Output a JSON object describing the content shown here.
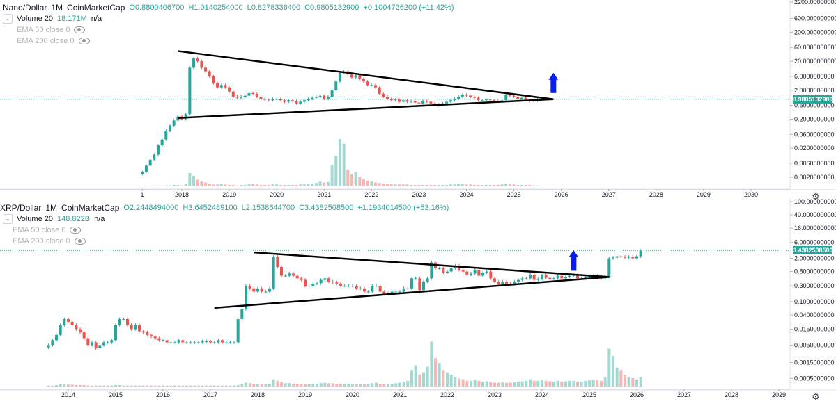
{
  "colors": {
    "up": "#26a69a",
    "down": "#ef5350",
    "vol_up": "#a3d9d3",
    "vol_down": "#f6b7b5",
    "arrow": "#0b1ee8",
    "line": "#000000",
    "grid": "#f0f3fa",
    "price_line": "#26a69a"
  },
  "chart_data": [
    {
      "type": "candlestick",
      "symbol": "Nano/Dollar",
      "interval": "1M",
      "source": "CoinMarketCap",
      "ohlc_labels": {
        "o": "O0.8800406700",
        "h": "H1.0140254000",
        "l": "L0.8278336400",
        "c": "C0.9805132900",
        "chg": "+0.1004726200 (+11.42%)"
      },
      "volume_label": "Volume 20",
      "volume_value": "18.171M",
      "volume_extra": "n/a",
      "ema_labels": [
        "EMA 50 close 0",
        "EMA 200 close 0"
      ],
      "last_price": "0.9805132900",
      "y_scale": "log",
      "y_ticks": [
        "2200.0000000000",
        "600.0000000000",
        "200.0000000000",
        "60.0000000000",
        "20.0000000000",
        "6.0000000000",
        "2.0000000000",
        "0.6000000000",
        "0.2000000000",
        "0.0600000000",
        "0.0200000000",
        "0.0060000000",
        "0.0020000000"
      ],
      "x_ticks": [
        "1",
        "2018",
        "2019",
        "2020",
        "2021",
        "2022",
        "2023",
        "2024",
        "2025",
        "2026",
        "2027",
        "2028",
        "2029",
        "2030"
      ],
      "start": "2017-03",
      "close": [
        0.003,
        0.005,
        0.008,
        0.012,
        0.025,
        0.04,
        0.08,
        0.12,
        0.18,
        0.25,
        0.2,
        0.3,
        12,
        25,
        20,
        12,
        9,
        6,
        3.5,
        2.5,
        3,
        2.5,
        1.8,
        1.2,
        1.1,
        1.2,
        1.3,
        1.6,
        1.5,
        1.2,
        1.0,
        0.95,
        0.9,
        1.0,
        1.0,
        0.9,
        0.8,
        0.9,
        0.85,
        0.7,
        0.8,
        0.9,
        1.0,
        1.1,
        1.2,
        1.3,
        1.0,
        1.2,
        2.0,
        4.0,
        8.0,
        9.0,
        7.0,
        5.5,
        6.5,
        5.0,
        4.0,
        3.0,
        3.0,
        2.5,
        1.5,
        1.2,
        1.0,
        0.9,
        0.95,
        0.8,
        0.9,
        0.8,
        0.85,
        0.75,
        0.7,
        0.85,
        0.8,
        0.7,
        0.6,
        0.65,
        0.7,
        0.8,
        0.9,
        1.0,
        1.2,
        1.4,
        1.3,
        1.2,
        1.1,
        0.9,
        0.9,
        0.95,
        0.9,
        0.85,
        0.8,
        0.9,
        1.4,
        1.3,
        1.2,
        1.0,
        1.1,
        0.9,
        0.85,
        0.88,
        0.98
      ],
      "volume_rel": [
        0,
        0,
        0,
        0,
        0.01,
        0.01,
        0.02,
        0.02,
        0.03,
        0.03,
        0.02,
        0.05,
        0.28,
        0.22,
        0.14,
        0.1,
        0.08,
        0.06,
        0.04,
        0.04,
        0.05,
        0.04,
        0.03,
        0.03,
        0.02,
        0.03,
        0.03,
        0.04,
        0.05,
        0.04,
        0.03,
        0.03,
        0.03,
        0.04,
        0.04,
        0.03,
        0.03,
        0.03,
        0.03,
        0.03,
        0.04,
        0.04,
        0.05,
        0.06,
        0.07,
        0.1,
        0.08,
        0.09,
        0.45,
        0.65,
        1.0,
        0.9,
        0.35,
        0.25,
        0.3,
        0.2,
        0.15,
        0.12,
        0.1,
        0.08,
        0.07,
        0.06,
        0.05,
        0.05,
        0.04,
        0.04,
        0.04,
        0.04,
        0.03,
        0.03,
        0.03,
        0.03,
        0.03,
        0.03,
        0.03,
        0.03,
        0.03,
        0.03,
        0.04,
        0.04,
        0.05,
        0.05,
        0.04,
        0.04,
        0.03,
        0.03,
        0.03,
        0.03,
        0.03,
        0.03,
        0.03,
        0.04,
        0.06,
        0.05,
        0.04,
        0.03,
        0.03,
        0.03,
        0.03,
        0.02,
        0.02
      ],
      "triangle": {
        "upper": [
          [
            "2017-12",
            45
          ],
          [
            "2025-11",
            0.98
          ]
        ],
        "lower": [
          [
            "2017-12",
            0.22
          ],
          [
            "2025-11",
            0.98
          ]
        ]
      },
      "arrow": {
        "x": "2025-11",
        "from": 1.6,
        "to": 8
      }
    },
    {
      "type": "candlestick",
      "symbol": "XRP/Dollar",
      "interval": "1M",
      "source": "CoinMarketCap",
      "ohlc_labels": {
        "o": "O2.2448494000",
        "h": "H3.6452489100",
        "l": "L2.1538644700",
        "c": "C3.4382508500",
        "chg": "+1.1934014500 (+53.16%)"
      },
      "volume_label": "Volume 20",
      "volume_value": "148.822B",
      "volume_extra": "n/a",
      "ema_labels": [
        "EMA 50 close 0",
        "EMA 200 close 0"
      ],
      "last_price": "3.4382508500",
      "y_scale": "log",
      "y_ticks": [
        "100.0000000000",
        "40.0000000000",
        "16.0000000000",
        "6.0000000000",
        "2.0000000000",
        "0.8000000000",
        "0.3000000000",
        "0.1000000000",
        "0.0400000000",
        "0.0150000000",
        "0.0050000000",
        "0.0015000000",
        "0.0005000000"
      ],
      "x_ticks": [
        "2014",
        "2015",
        "2016",
        "2017",
        "2018",
        "2019",
        "2020",
        "2021",
        "2022",
        "2023",
        "2024",
        "2025",
        "2026",
        "2027",
        "2028",
        "2029"
      ],
      "start": "2013-08",
      "close": [
        0.005,
        0.007,
        0.01,
        0.02,
        0.03,
        0.025,
        0.02,
        0.015,
        0.012,
        0.008,
        0.005,
        0.006,
        0.004,
        0.005,
        0.006,
        0.006,
        0.007,
        0.02,
        0.03,
        0.03,
        0.02,
        0.015,
        0.02,
        0.013,
        0.012,
        0.01,
        0.009,
        0.008,
        0.007,
        0.007,
        0.006,
        0.006,
        0.006,
        0.007,
        0.006,
        0.006,
        0.006,
        0.006,
        0.006,
        0.0065,
        0.0065,
        0.006,
        0.006,
        0.007,
        0.006,
        0.006,
        0.006,
        0.006,
        0.03,
        0.06,
        0.3,
        0.25,
        0.2,
        0.25,
        0.2,
        0.2,
        0.25,
        2.2,
        1.1,
        0.6,
        0.6,
        0.7,
        0.6,
        0.5,
        0.45,
        0.3,
        0.3,
        0.35,
        0.36,
        0.45,
        0.5,
        0.4,
        0.38,
        0.35,
        0.3,
        0.3,
        0.3,
        0.3,
        0.25,
        0.25,
        0.2,
        0.2,
        0.3,
        0.3,
        0.2,
        0.17,
        0.18,
        0.2,
        0.2,
        0.2,
        0.25,
        0.25,
        0.5,
        0.5,
        0.22,
        0.4,
        0.5,
        1.5,
        1.0,
        1.0,
        0.75,
        0.8,
        1.0,
        1.2,
        0.9,
        0.8,
        0.65,
        0.7,
        0.9,
        0.6,
        0.75,
        0.8,
        0.5,
        0.4,
        0.33,
        0.4,
        0.35,
        0.33,
        0.4,
        0.45,
        0.5,
        0.5,
        0.65,
        0.45,
        0.48,
        0.62,
        0.52,
        0.47,
        0.5,
        0.6,
        0.5,
        0.55,
        0.6,
        0.62,
        0.5,
        0.5,
        0.55,
        0.6,
        0.6,
        0.55,
        0.5,
        0.55,
        2.0,
        2.1,
        2.3,
        2.2,
        2.1,
        2.2,
        2.0,
        2.3,
        3.4
      ],
      "volume_rel": [
        0.02,
        0.02,
        0.03,
        0.05,
        0.05,
        0.04,
        0.04,
        0.03,
        0.03,
        0.03,
        0.02,
        0.02,
        0.02,
        0.02,
        0.02,
        0.02,
        0.02,
        0.03,
        0.03,
        0.02,
        0.02,
        0.02,
        0.02,
        0.02,
        0.02,
        0.02,
        0.02,
        0.02,
        0.02,
        0.02,
        0.02,
        0.02,
        0.02,
        0.02,
        0.02,
        0.02,
        0.02,
        0.02,
        0.02,
        0.02,
        0.02,
        0.02,
        0.02,
        0.02,
        0.02,
        0.02,
        0.02,
        0.02,
        0.03,
        0.05,
        0.08,
        0.07,
        0.05,
        0.05,
        0.05,
        0.05,
        0.06,
        0.15,
        0.12,
        0.09,
        0.07,
        0.07,
        0.06,
        0.06,
        0.06,
        0.05,
        0.05,
        0.06,
        0.06,
        0.07,
        0.08,
        0.07,
        0.07,
        0.06,
        0.06,
        0.06,
        0.06,
        0.06,
        0.05,
        0.05,
        0.05,
        0.05,
        0.07,
        0.08,
        0.06,
        0.05,
        0.06,
        0.06,
        0.07,
        0.08,
        0.1,
        0.12,
        0.35,
        0.45,
        0.25,
        0.3,
        0.42,
        0.95,
        0.6,
        0.5,
        0.35,
        0.3,
        0.25,
        0.2,
        0.17,
        0.15,
        0.12,
        0.12,
        0.14,
        0.12,
        0.1,
        0.11,
        0.09,
        0.08,
        0.08,
        0.09,
        0.08,
        0.08,
        0.09,
        0.1,
        0.11,
        0.12,
        0.15,
        0.12,
        0.12,
        0.14,
        0.12,
        0.11,
        0.1,
        0.12,
        0.1,
        0.11,
        0.12,
        0.12,
        0.1,
        0.1,
        0.12,
        0.13,
        0.14,
        0.13,
        0.12,
        0.2,
        0.8,
        0.65,
        0.4,
        0.35,
        0.25,
        0.2,
        0.18,
        0.15,
        0.2
      ],
      "triangle": {
        "upper": [
          [
            "2017-12",
            3.0
          ],
          [
            "2025-06",
            0.55
          ]
        ],
        "lower": [
          [
            "2017-02",
            0.065
          ],
          [
            "2025-06",
            0.55
          ]
        ]
      },
      "arrow": {
        "x": "2024-09",
        "from": 0.85,
        "to": 3.5
      }
    }
  ]
}
